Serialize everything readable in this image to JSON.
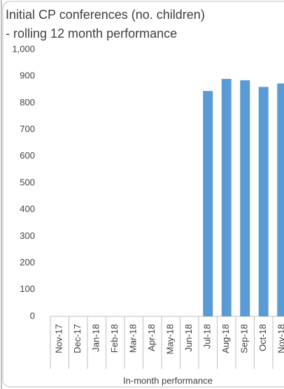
{
  "chart_data": {
    "type": "bar",
    "title": "Initial CP conferences (no. children) - rolling 12 month performance",
    "x_label": "In-month performance",
    "categories": [
      "Nov-17",
      "Dec-17",
      "Jan-18",
      "Feb-18",
      "Mar-18",
      "Apr-18",
      "May-18",
      "Jun-18",
      "Jul-18",
      "Aug-18",
      "Sep-18",
      "Oct-18",
      "Nov-18"
    ],
    "values": [
      null,
      null,
      null,
      null,
      null,
      null,
      null,
      null,
      845,
      890,
      885,
      860,
      873
    ],
    "color": "#5b9bd5",
    "ylim": [
      0,
      1000
    ],
    "yticks": [
      0,
      100,
      200,
      300,
      400,
      500,
      600,
      700,
      800,
      900,
      {
        "value": 1000,
        "label": "1,000"
      }
    ],
    "grid": false
  }
}
